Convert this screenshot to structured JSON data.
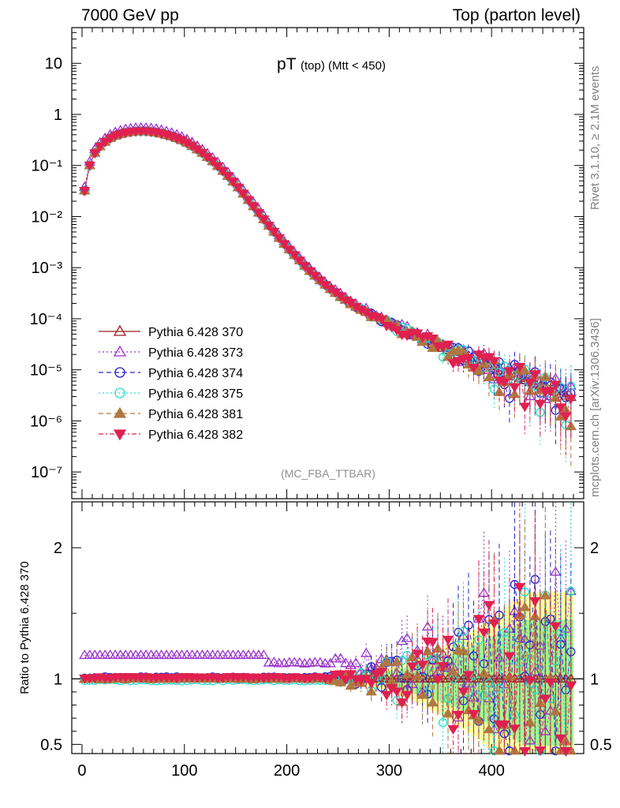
{
  "header": {
    "left": "7000 GeV pp",
    "right": "Top (parton level)"
  },
  "side_labels": {
    "rivet": "Rivet 3.1.10, ≥ 2.1M events",
    "mcplots": "mcplots.cern.ch [arXiv:1306.3436]"
  },
  "chart_data": [
    {
      "type": "scatter",
      "title": "pT (top) (Mtt < 450)",
      "title_main": "pT",
      "title_small": "(top) (Mtt < 450)",
      "watermark": "(MC_FBA_TTBAR)",
      "xlim": [
        -10,
        490
      ],
      "ylim": [
        3e-08,
        50
      ],
      "yscale": "log",
      "ytick_labels": [
        "10",
        "1",
        "10⁻¹",
        "10⁻²",
        "10⁻³",
        "10⁻⁴",
        "10⁻⁵",
        "10⁻⁶",
        "10⁻⁷"
      ],
      "ytick_values": [
        10,
        1,
        0.1,
        0.01,
        0.001,
        0.0001,
        1e-05,
        1e-06,
        1e-07
      ],
      "legend_position": "lower-left",
      "x": [
        2.5,
        7.5,
        12.5,
        17.5,
        22.5,
        27.5,
        32.5,
        37.5,
        42.5,
        47.5,
        52.5,
        57.5,
        62.5,
        67.5,
        72.5,
        77.5,
        82.5,
        87.5,
        92.5,
        97.5,
        102.5,
        107.5,
        112.5,
        117.5,
        122.5,
        127.5,
        132.5,
        137.5,
        142.5,
        147.5,
        152.5,
        157.5,
        162.5,
        167.5,
        172.5,
        177.5,
        182.5,
        187.5,
        192.5,
        197.5,
        202.5,
        207.5,
        212.5,
        217.5,
        222.5,
        227.5,
        232.5,
        237.5,
        242.5,
        247.5,
        252.5,
        257.5,
        262.5,
        267.5,
        272.5,
        277.5,
        282.5,
        287.5,
        292.5,
        297.5,
        302.5,
        307.5,
        312.5,
        317.5,
        322.5,
        327.5,
        332.5,
        337.5,
        342.5,
        347.5,
        352.5,
        357.5,
        362.5,
        367.5,
        372.5,
        377.5,
        382.5,
        387.5,
        392.5,
        397.5,
        402.5,
        407.5,
        412.5,
        417.5,
        422.5,
        427.5,
        432.5,
        437.5,
        442.5,
        447.5,
        452.5,
        457.5,
        462.5,
        467.5,
        472.5,
        477.5
      ],
      "series": [
        {
          "name": "Pythia 6.428 370",
          "color": "#9b1c1c",
          "marker": "triangle-up-open",
          "line": "solid",
          "values": [
            0.032,
            0.1,
            0.175,
            0.235,
            0.29,
            0.34,
            0.38,
            0.41,
            0.435,
            0.45,
            0.46,
            0.465,
            0.462,
            0.455,
            0.44,
            0.42,
            0.395,
            0.37,
            0.34,
            0.31,
            0.275,
            0.24,
            0.205,
            0.175,
            0.145,
            0.12,
            0.097,
            0.078,
            0.062,
            0.048,
            0.037,
            0.028,
            0.021,
            0.0158,
            0.0118,
            0.0088,
            0.0066,
            0.005,
            0.0038,
            0.0029,
            0.00225,
            0.00175,
            0.00138,
            0.00108,
            0.00086,
            0.00069,
            0.00056,
            0.00046,
            0.00038,
            0.00032,
            0.00027,
            0.000232,
            0.0002,
            0.000174,
            0.000152,
            0.000134,
            0.000118,
            0.000105,
            9.35e-05,
            8.35e-05,
            7.45e-05,
            6.7e-05,
            6e-05,
            5.4e-05,
            4.85e-05,
            4.38e-05,
            3.96e-05,
            3.58e-05,
            3.24e-05,
            2.94e-05,
            2.66e-05,
            2.42e-05,
            2.2e-05,
            2e-05,
            1.82e-05,
            1.66e-05,
            1.51e-05,
            1.38e-05,
            1.26e-05,
            1.15e-05,
            1.05e-05,
            9.6e-06,
            8.8e-06,
            8.1e-06,
            7.4e-06,
            6.8e-06,
            6.2e-06,
            5.7e-06,
            5.2e-06,
            4.8e-06,
            4.4e-06,
            4e-06,
            3.7e-06,
            3.4e-06,
            3.1e-06,
            2.9e-06
          ]
        },
        {
          "name": "Pythia 6.428 373",
          "color": "#9933cc",
          "marker": "triangle-up-open",
          "line": "dotted",
          "values": []
        },
        {
          "name": "Pythia 6.428 374",
          "color": "#2222cc",
          "marker": "circle-open",
          "line": "dashed",
          "values": []
        },
        {
          "name": "Pythia 6.428 375",
          "color": "#22ddcc",
          "marker": "circle-open",
          "line": "dotted",
          "values": []
        },
        {
          "name": "Pythia 6.428 381",
          "color": "#b07840",
          "marker": "triangle-up-filled",
          "line": "dashed",
          "values": []
        },
        {
          "name": "Pythia 6.428 382",
          "color": "#e02050",
          "marker": "triangle-down-filled",
          "line": "dashdot",
          "values": []
        }
      ]
    },
    {
      "type": "scatter",
      "ylabel": "Ratio to Pythia 6.428 370",
      "xlim": [
        -10,
        490
      ],
      "ylim": [
        0.43,
        2.35
      ],
      "ytick_labels": [
        "0.5",
        "1",
        "2"
      ],
      "ytick_values": [
        0.5,
        1,
        2
      ],
      "xtick_labels": [
        "0",
        "100",
        "200",
        "300",
        "400"
      ],
      "xtick_values": [
        0,
        100,
        200,
        300,
        400
      ],
      "reference_line": 1,
      "series_offsets": {
        "Pythia 6.428 373": 1.18,
        "Pythia 6.428 374": 1.01,
        "Pythia 6.428 375": 0.99,
        "Pythia 6.428 381": 1.0,
        "Pythia 6.428 382": 1.01
      }
    }
  ]
}
